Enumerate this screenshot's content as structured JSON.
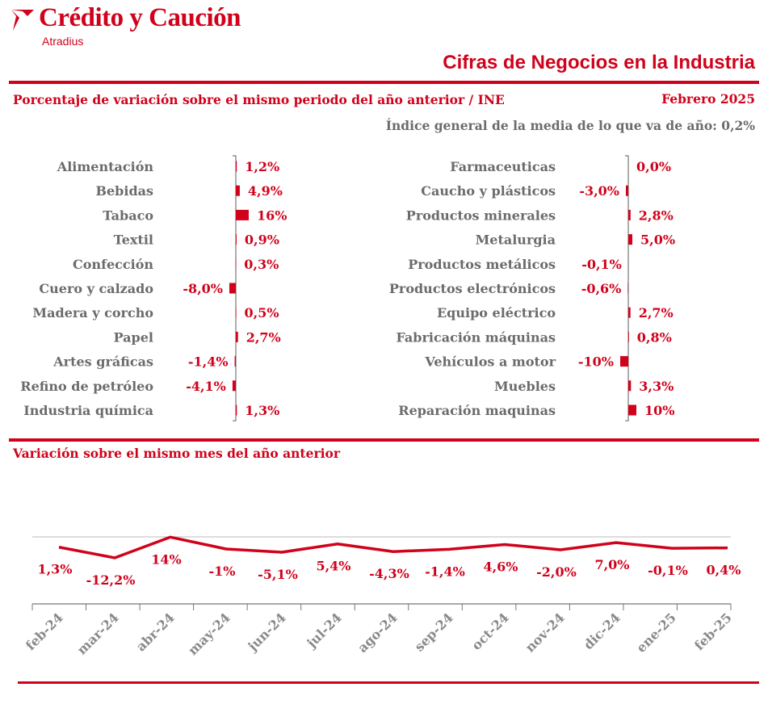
{
  "header": {
    "brand": "Crédito y Caución",
    "brand_sub": "Atradius",
    "report_title": "Cifras de Negocios en la Industria",
    "subtitle": "Porcentaje de variación sobre el mismo periodo del año anterior / INE",
    "period": "Febrero 2025",
    "index_line": "Índice general de la media de lo que va de año:  0,2%"
  },
  "colors": {
    "accent": "#d0021b",
    "text": "#6b6b6b",
    "axis": "#777777"
  },
  "section2_title": "Variación sobre el mismo mes del año anterior",
  "chart_data": [
    {
      "type": "bar",
      "orientation": "horizontal",
      "categories": [
        "Alimentación",
        "Bebidas",
        "Tabaco",
        "Textil",
        "Confección",
        "Cuero y calzado",
        "Madera y corcho",
        "Papel",
        "Artes gráficas",
        "Refino de petróleo",
        "Industria química"
      ],
      "values": [
        1.2,
        4.9,
        16,
        0.9,
        0.3,
        -8.0,
        0.5,
        2.7,
        -1.4,
        -4.1,
        1.3
      ],
      "labels": [
        "1,2%",
        "4,9%",
        "16%",
        "0,9%",
        "0,3%",
        "-8,0%",
        "0,5%",
        "2,7%",
        "-1,4%",
        "-4,1%",
        "1,3%"
      ]
    },
    {
      "type": "bar",
      "orientation": "horizontal",
      "categories": [
        "Farmaceuticas",
        "Caucho y plásticos",
        "Productos minerales",
        "Metalurgia",
        "Productos metálicos",
        "Productos electrónicos",
        "Equipo eléctrico",
        "Fabricación máquinas",
        "Vehículos a motor",
        "Muebles",
        "Reparación maquinas"
      ],
      "values": [
        0.0,
        -3.0,
        2.8,
        5.0,
        -0.1,
        -0.6,
        2.7,
        0.8,
        -10,
        3.3,
        10
      ],
      "labels": [
        "0,0%",
        "-3,0%",
        "2,8%",
        "5,0%",
        "-0,1%",
        "-0,6%",
        "2,7%",
        "0,8%",
        "-10%",
        "3,3%",
        "10%"
      ]
    },
    {
      "type": "line",
      "categories": [
        "feb-24",
        "mar-24",
        "abr-24",
        "may-24",
        "jun-24",
        "jul-24",
        "ago-24",
        "sep-24",
        "oct-24",
        "nov-24",
        "dic-24",
        "ene-25",
        "feb-25"
      ],
      "values": [
        1.3,
        -12.2,
        14,
        -1,
        -5.1,
        5.4,
        -4.3,
        -1.4,
        4.6,
        -2.0,
        7.0,
        -0.1,
        0.4
      ],
      "labels": [
        "1,3%",
        "-12,2%",
        "14%",
        "-1%",
        "-5,1%",
        "5,4%",
        "-4,3%",
        "-1,4%",
        "4,6%",
        "-2,0%",
        "7,0%",
        "-0,1%",
        "0,4%"
      ]
    }
  ]
}
